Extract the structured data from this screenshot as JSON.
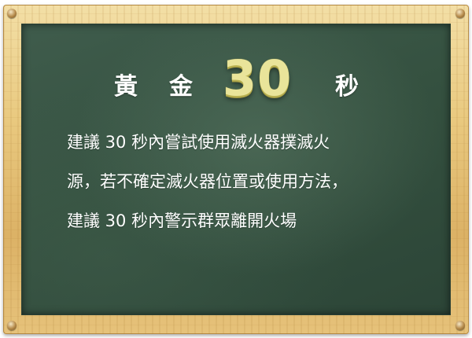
{
  "board": {
    "title_chars": [
      "黃",
      "金",
      "秒"
    ],
    "title_number": "30",
    "lines": [
      "建議 30 秒內嘗試使用滅火器撲滅火",
      "源，若不確定滅火器位置或使用方法，",
      "建議 30 秒內警示群眾離開火場"
    ]
  },
  "colors": {
    "chalkboard": "#34503f",
    "frame_wood": "#e6c27a",
    "number_accent": "#e9e49a",
    "text": "#ffffff"
  }
}
